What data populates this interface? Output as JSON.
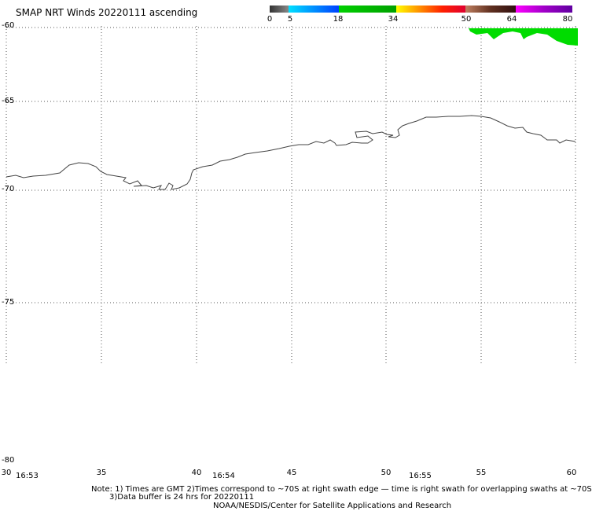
{
  "title": "SMAP NRT Winds 20220111 ascending",
  "colorbar": {
    "ticks": [
      "0",
      "5",
      "18",
      "34",
      "50",
      "64",
      "80"
    ],
    "colors": [
      "#6e6e6e",
      "#00c8ff",
      "#0064ff",
      "#00c800",
      "#f0f000",
      "#ff6400",
      "#c87850",
      "#ff00ff",
      "#7800c8"
    ]
  },
  "map": {
    "lat_labels": [
      "-60",
      "-65",
      "-70",
      "-75",
      "-80"
    ],
    "lon_labels": [
      "30",
      "35",
      "40",
      "45",
      "50",
      "55",
      "60"
    ],
    "time_labels": [
      "16:53",
      "16:54",
      "16:55"
    ],
    "wind_color": "#00dc00",
    "coast_color": "#444444"
  },
  "notes": {
    "line1": "Note: 1) Times are GMT 2)Times correspond to ~70S at right swath edge — time is right swath for overlapping swaths at ~70S",
    "line2": "3)Data buffer is 24 hrs for 20220111",
    "line3": "NOAA/NESDIS/Center for Satellite Applications and Research"
  }
}
